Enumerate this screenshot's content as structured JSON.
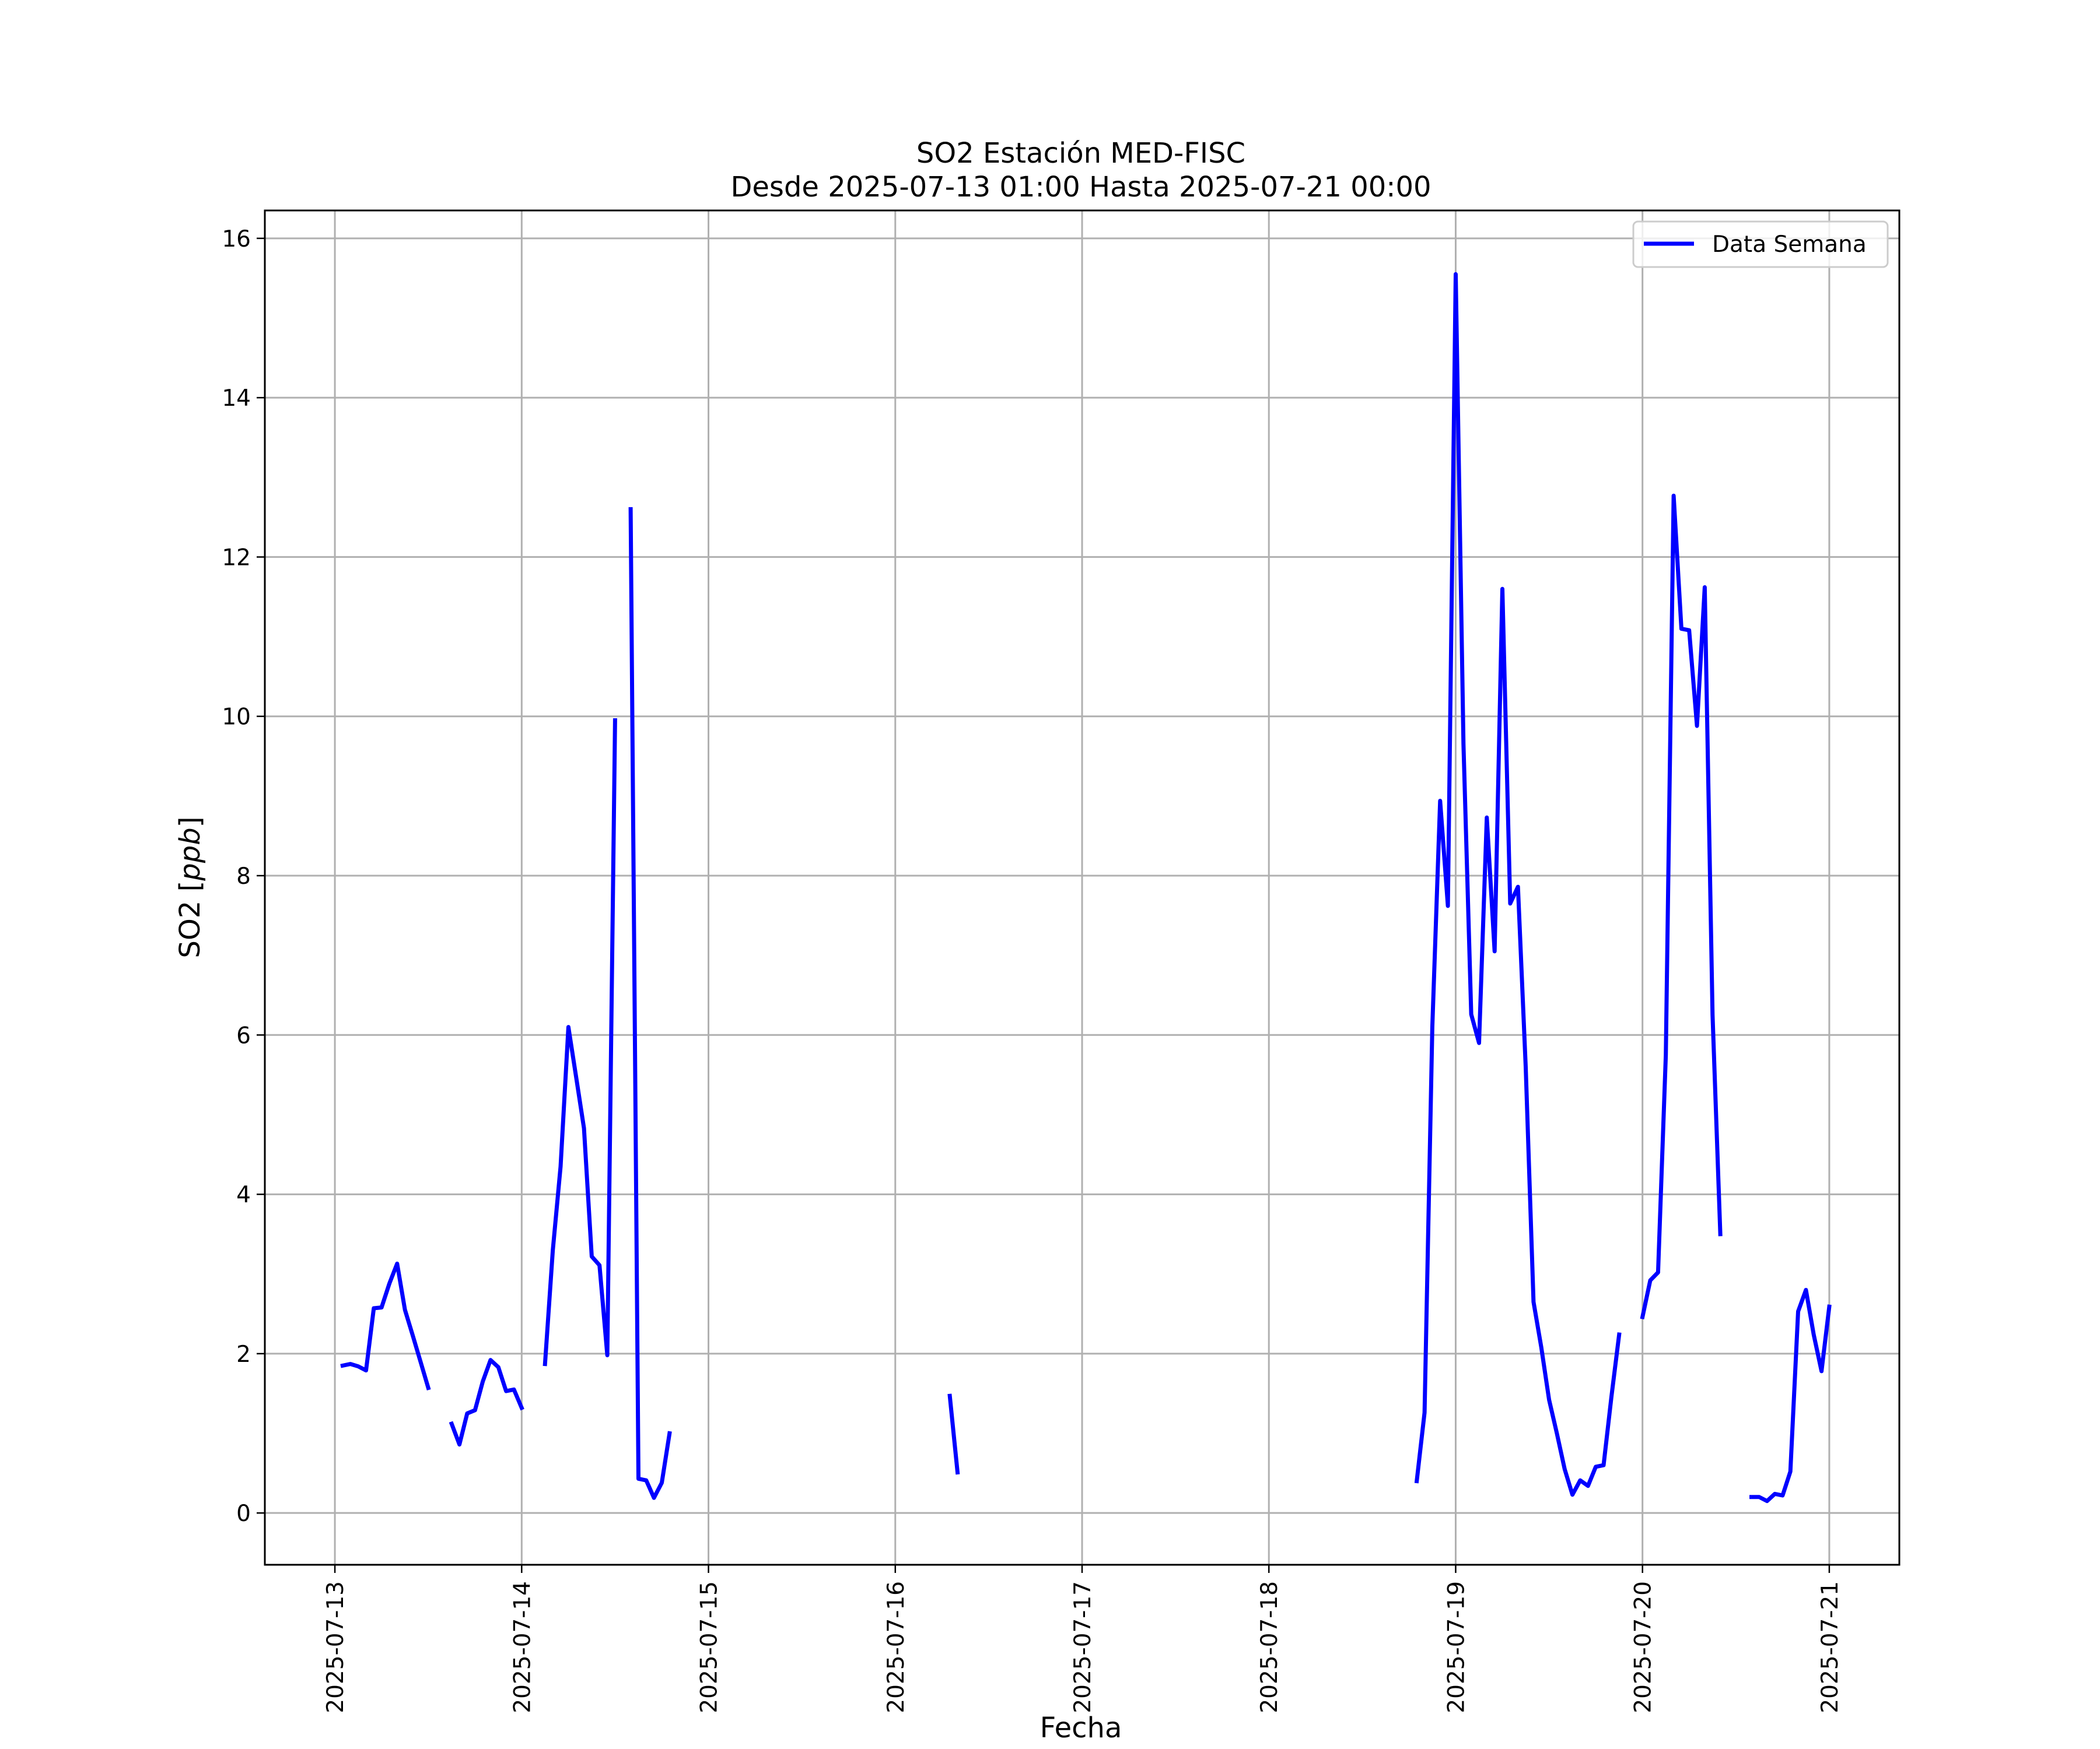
{
  "chart_data": {
    "type": "line",
    "title": "SO2 Estación MED-FISC",
    "subtitle": "Desde 2025-07-13 01:00 Hasta 2025-07-21 00:00",
    "xlabel": "Fecha",
    "ylabel": "SO2 [ppb]",
    "ylabel_main": "SO2 ",
    "ylabel_unit": "ppb",
    "grid": true,
    "legend_position": "top-right",
    "x_range": [
      "2025-07-12T15:00",
      "2025-07-21T09:00"
    ],
    "ylim": [
      -0.65,
      16.35
    ],
    "x_ticks": [
      "2025-07-13",
      "2025-07-14",
      "2025-07-15",
      "2025-07-16",
      "2025-07-17",
      "2025-07-18",
      "2025-07-19",
      "2025-07-20",
      "2025-07-21"
    ],
    "y_ticks": [
      0,
      2,
      4,
      6,
      8,
      10,
      12,
      14,
      16
    ],
    "series": [
      {
        "name": "Data Semana",
        "color": "#0000ff",
        "segments": [
          [
            [
              "2025-07-13T01:00",
              1.85
            ],
            [
              "2025-07-13T02:00",
              1.87
            ],
            [
              "2025-07-13T03:00",
              1.84
            ],
            [
              "2025-07-13T04:00",
              1.79
            ],
            [
              "2025-07-13T05:00",
              2.57
            ],
            [
              "2025-07-13T06:00",
              2.58
            ],
            [
              "2025-07-13T07:00",
              2.88
            ],
            [
              "2025-07-13T08:00",
              3.13
            ],
            [
              "2025-07-13T09:00",
              2.55
            ],
            [
              "2025-07-13T10:00",
              2.23
            ],
            [
              "2025-07-13T11:00",
              1.9
            ],
            [
              "2025-07-13T12:00",
              1.57
            ]
          ],
          [
            [
              "2025-07-13T15:00",
              1.12
            ],
            [
              "2025-07-13T16:00",
              0.86
            ],
            [
              "2025-07-13T17:00",
              1.25
            ],
            [
              "2025-07-13T18:00",
              1.29
            ],
            [
              "2025-07-13T19:00",
              1.65
            ],
            [
              "2025-07-13T20:00",
              1.92
            ],
            [
              "2025-07-13T21:00",
              1.83
            ],
            [
              "2025-07-13T22:00",
              1.53
            ],
            [
              "2025-07-13T23:00",
              1.55
            ],
            [
              "2025-07-14T00:00",
              1.32
            ]
          ],
          [
            [
              "2025-07-14T03:00",
              1.87
            ],
            [
              "2025-07-14T04:00",
              3.3
            ],
            [
              "2025-07-14T05:00",
              4.35
            ],
            [
              "2025-07-14T06:00",
              6.1
            ],
            [
              "2025-07-14T07:00",
              5.47
            ],
            [
              "2025-07-14T08:00",
              4.83
            ],
            [
              "2025-07-14T09:00",
              3.22
            ],
            [
              "2025-07-14T10:00",
              3.11
            ],
            [
              "2025-07-14T11:00",
              1.98
            ],
            [
              "2025-07-14T12:00",
              9.95
            ]
          ],
          [
            [
              "2025-07-14T14:00",
              12.6
            ],
            [
              "2025-07-14T15:00",
              0.43
            ],
            [
              "2025-07-14T16:00",
              0.41
            ],
            [
              "2025-07-14T17:00",
              0.19
            ],
            [
              "2025-07-14T18:00",
              0.38
            ],
            [
              "2025-07-14T19:00",
              1.0
            ]
          ],
          [
            [
              "2025-07-16T07:00",
              1.47
            ],
            [
              "2025-07-16T08:00",
              0.51
            ]
          ],
          [
            [
              "2025-07-18T19:00",
              0.4
            ],
            [
              "2025-07-18T20:00",
              1.26
            ],
            [
              "2025-07-18T21:00",
              6.1
            ],
            [
              "2025-07-18T22:00",
              8.94
            ],
            [
              "2025-07-18T23:00",
              7.62
            ],
            [
              "2025-07-19T00:00",
              15.55
            ],
            [
              "2025-07-19T01:00",
              9.65
            ],
            [
              "2025-07-19T02:00",
              6.26
            ],
            [
              "2025-07-19T03:00",
              5.9
            ],
            [
              "2025-07-19T04:00",
              8.73
            ],
            [
              "2025-07-19T05:00",
              7.05
            ],
            [
              "2025-07-19T06:00",
              11.6
            ],
            [
              "2025-07-19T07:00",
              7.65
            ],
            [
              "2025-07-19T08:00",
              7.86
            ],
            [
              "2025-07-19T09:00",
              5.6
            ],
            [
              "2025-07-19T10:00",
              2.65
            ],
            [
              "2025-07-19T11:00",
              2.08
            ],
            [
              "2025-07-19T12:00",
              1.42
            ],
            [
              "2025-07-19T13:00",
              1.0
            ],
            [
              "2025-07-19T14:00",
              0.55
            ],
            [
              "2025-07-19T15:00",
              0.23
            ],
            [
              "2025-07-19T16:00",
              0.41
            ],
            [
              "2025-07-19T17:00",
              0.34
            ],
            [
              "2025-07-19T18:00",
              0.58
            ],
            [
              "2025-07-19T19:00",
              0.6
            ],
            [
              "2025-07-19T20:00",
              1.45
            ],
            [
              "2025-07-19T21:00",
              2.24
            ]
          ],
          [
            [
              "2025-07-20T00:00",
              2.46
            ],
            [
              "2025-07-20T01:00",
              2.92
            ],
            [
              "2025-07-20T02:00",
              3.02
            ],
            [
              "2025-07-20T03:00",
              5.75
            ],
            [
              "2025-07-20T04:00",
              12.77
            ],
            [
              "2025-07-20T05:00",
              11.1
            ],
            [
              "2025-07-20T06:00",
              11.08
            ],
            [
              "2025-07-20T07:00",
              9.88
            ],
            [
              "2025-07-20T08:00",
              11.62
            ],
            [
              "2025-07-20T09:00",
              6.25
            ],
            [
              "2025-07-20T10:00",
              3.5
            ]
          ],
          [
            [
              "2025-07-20T14:00",
              0.2
            ],
            [
              "2025-07-20T15:00",
              0.2
            ],
            [
              "2025-07-20T16:00",
              0.15
            ],
            [
              "2025-07-20T17:00",
              0.24
            ],
            [
              "2025-07-20T18:00",
              0.22
            ],
            [
              "2025-07-20T19:00",
              0.52
            ],
            [
              "2025-07-20T20:00",
              2.53
            ],
            [
              "2025-07-20T21:00",
              2.8
            ],
            [
              "2025-07-20T22:00",
              2.24
            ],
            [
              "2025-07-20T23:00",
              1.78
            ],
            [
              "2025-07-21T00:00",
              2.59
            ]
          ]
        ]
      }
    ]
  }
}
